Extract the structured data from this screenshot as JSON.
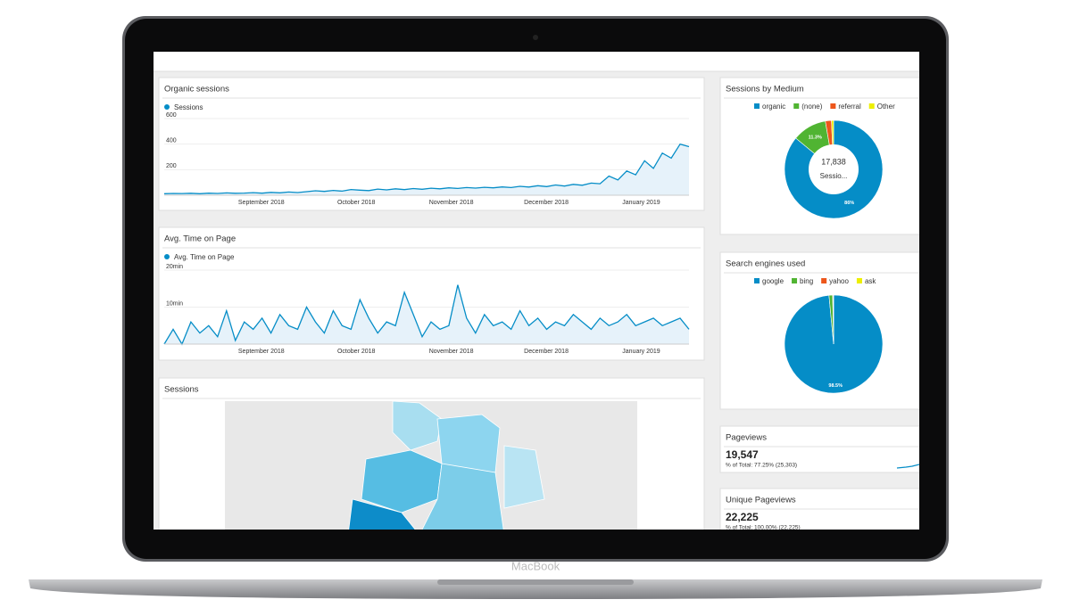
{
  "device_label": "MacBook",
  "widgets": {
    "organic_sessions": {
      "type": "line",
      "title": "Organic sessions",
      "series_name": "Sessions",
      "color": "#058dc7",
      "ylim": [
        0,
        600
      ],
      "yticks": [
        200,
        400,
        600
      ],
      "xlabels": [
        "September 2018",
        "October 2018",
        "November 2018",
        "December 2018",
        "January 2019"
      ],
      "values": [
        12,
        14,
        13,
        15,
        12,
        16,
        14,
        18,
        15,
        17,
        20,
        16,
        22,
        19,
        25,
        21,
        28,
        35,
        30,
        38,
        32,
        45,
        40,
        36,
        48,
        42,
        50,
        44,
        52,
        47,
        55,
        50,
        58,
        53,
        60,
        56,
        62,
        58,
        65,
        60,
        70,
        64,
        75,
        68,
        80,
        72,
        85,
        78,
        95,
        90,
        150,
        120,
        190,
        160,
        270,
        210,
        330,
        290,
        400,
        380
      ]
    },
    "avg_time": {
      "type": "line",
      "title": "Avg. Time on Page",
      "series_name": "Avg. Time on Page",
      "color": "#058dc7",
      "ylim": [
        0,
        20
      ],
      "yticks": [
        {
          "value": 10,
          "label": "10min"
        },
        {
          "value": 20,
          "label": "20min"
        }
      ],
      "xlabels": [
        "September 2018",
        "October 2018",
        "November 2018",
        "December 2018",
        "January 2019"
      ],
      "values": [
        0,
        4,
        0,
        6,
        3,
        5,
        2,
        9,
        1,
        6,
        4,
        7,
        3,
        8,
        5,
        4,
        10,
        6,
        3,
        9,
        5,
        4,
        12,
        7,
        3,
        6,
        5,
        14,
        8,
        2,
        6,
        4,
        5,
        16,
        7,
        3,
        8,
        5,
        6,
        4,
        9,
        5,
        7,
        4,
        6,
        5,
        8,
        6,
        4,
        7,
        5,
        6,
        8,
        5,
        6,
        7,
        5,
        6,
        7,
        4
      ]
    },
    "sessions_map": {
      "title": "Sessions"
    },
    "sessions_by_medium": {
      "type": "pie",
      "title": "Sessions by Medium",
      "categories": [
        "organic",
        "(none)",
        "referral",
        "Other"
      ],
      "colors": [
        "#058dc7",
        "#50b432",
        "#ed561b",
        "#edef00"
      ],
      "values": [
        86,
        11.3,
        2,
        0.7
      ],
      "value_labels": [
        "86%",
        "11.3%",
        null,
        null
      ],
      "center_value": "17,838",
      "center_label": "Sessio..."
    },
    "search_engines": {
      "type": "pie",
      "title": "Search engines used",
      "categories": [
        "google",
        "bing",
        "yahoo",
        "ask"
      ],
      "colors": [
        "#058dc7",
        "#50b432",
        "#ed561b",
        "#edef00"
      ],
      "values": [
        98.5,
        1.2,
        0.2,
        0.1
      ],
      "value_labels": [
        "98.5%",
        null,
        null,
        null
      ]
    },
    "pageviews": {
      "title": "Pageviews",
      "value": "19,547",
      "subtitle": "% of Total: 77.25% (25,303)"
    },
    "unique_pageviews": {
      "title": "Unique Pageviews",
      "value": "22,225",
      "subtitle": "% of Total: 100.00% (22,225)"
    }
  }
}
